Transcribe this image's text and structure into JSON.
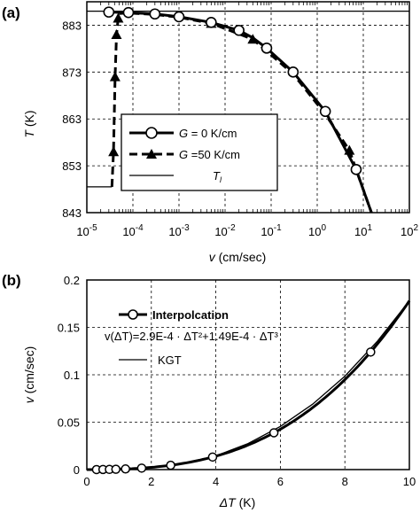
{
  "chart_data": [
    {
      "panel_label": "(a)",
      "type": "line",
      "xscale": "log",
      "xlim": [
        1e-05,
        100
      ],
      "ylim": [
        843,
        888
      ],
      "xlabel_sym": "v",
      "xlabel_unit": "(cm/sec)",
      "ylabel_sym": "T",
      "ylabel_unit": "(K)",
      "yticks": [
        "843",
        "853",
        "863",
        "873",
        "883"
      ],
      "xtick_exponents": [
        "-5",
        "-4",
        "-3",
        "-2",
        "-1",
        "0",
        "1",
        "2"
      ],
      "grid": true,
      "legend_position": "lower-left",
      "series": [
        {
          "name_sym": "G",
          "name_rest": " = 0  K/cm",
          "marker": "circle",
          "line": "solid",
          "x": [
            3e-05,
            8e-05,
            0.0003,
            0.001,
            0.005,
            0.02,
            0.04,
            0.08,
            0.3,
            1.5,
            7,
            15
          ],
          "y": [
            885.8,
            885.7,
            885.4,
            884.8,
            883.6,
            881.9,
            880.3,
            878.1,
            873.0,
            864.6,
            852.2,
            843
          ],
          "markers_at": [
            3e-05,
            8e-05,
            0.0003,
            0.001,
            0.005,
            0.02,
            0.08,
            0.3,
            1.5,
            7
          ]
        },
        {
          "name_sym": "G",
          "name_rest": " =50 K/cm",
          "marker": "triangle",
          "line": "dashed",
          "x": [
            3.5e-05,
            3.8e-05,
            4.1e-05,
            4.4e-05,
            4.8e-05,
            5e-05,
            8e-05,
            0.0003,
            0.001,
            0.005,
            0.04,
            0.3,
            1.5,
            5,
            15
          ],
          "y": [
            848.5,
            856,
            872,
            881,
            884.5,
            885.5,
            885.6,
            885.3,
            884.7,
            883.4,
            880.0,
            872.6,
            864.0,
            856.3,
            843
          ],
          "markers_at": [
            3.8e-05,
            4.1e-05,
            4.4e-05,
            4.8e-05,
            0.005,
            0.04,
            5
          ]
        },
        {
          "name_sym": "T",
          "name_sub": "l",
          "marker": "none",
          "line": "thin",
          "x": [
            1e-05,
            100
          ],
          "y": [
            886,
            886
          ]
        }
      ],
      "lower_level": {
        "x": [
          1e-05,
          3.5e-05
        ],
        "y": 848.5
      }
    },
    {
      "panel_label": "(b)",
      "type": "line",
      "xlim": [
        0,
        10
      ],
      "ylim": [
        0,
        0.2
      ],
      "xlabel_sym": "ΔT",
      "xlabel_unit": " (K)",
      "ylabel_sym": "v",
      "ylabel_unit": " (cm/sec)",
      "xticks": [
        "0",
        "2",
        "4",
        "6",
        "8",
        "10"
      ],
      "yticks": [
        "0",
        "0.05",
        "0.1",
        "0.15",
        "0.2"
      ],
      "grid": true,
      "legend_position": "top-left",
      "formula": "v(ΔT)=2.9E-4 · ΔT²+1.49E-4 · ΔT³",
      "series": [
        {
          "name": "Interpolcation",
          "marker": "circle",
          "markers_at_x": [
            0.3,
            0.5,
            0.7,
            0.9,
            1.2,
            1.7,
            2.6,
            3.9,
            5.8,
            8.8
          ],
          "coef_a2": 0.00029,
          "coef_a3": 0.000149
        },
        {
          "name": "KGT",
          "marker": "none",
          "x": [
            0,
            1,
            2,
            3,
            4,
            5,
            6,
            7,
            8,
            9,
            10
          ],
          "y": [
            0,
            0.0004,
            0.0022,
            0.0065,
            0.0145,
            0.0275,
            0.0455,
            0.069,
            0.0985,
            0.135,
            0.178
          ]
        }
      ]
    }
  ]
}
